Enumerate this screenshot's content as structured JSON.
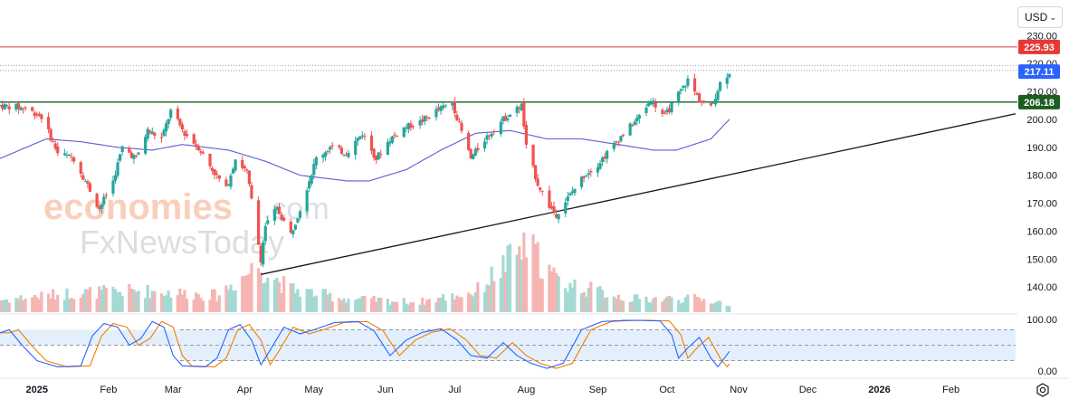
{
  "currency": {
    "selected": "USD"
  },
  "icons": {
    "currency_dropdown": "chevron-down-icon",
    "settings": "gear-icon"
  },
  "chart_data": [
    {
      "type": "candlestick",
      "title": "",
      "ylim": [
        131,
        233
      ],
      "y_ticks": [
        "140.00",
        "150.00",
        "160.00",
        "170.00",
        "180.00",
        "190.00",
        "200.00",
        "210.00",
        "220.00",
        "230.00"
      ],
      "x_ticks": [
        "2025",
        "Feb",
        "Mar",
        "Apr",
        "May",
        "Jun",
        "Jul",
        "Aug",
        "Sep",
        "Oct",
        "Nov",
        "Dec",
        "2026",
        "Feb"
      ],
      "tick_dates": [
        "2025-01-01",
        "2025-02-01",
        "2025-03-01",
        "2025-04-01",
        "2025-05-01",
        "2025-06-01",
        "2025-07-01",
        "2025-08-01",
        "2025-09-01",
        "2025-10-01",
        "2025-11-01",
        "2025-12-01",
        "2026-01-01",
        "2026-02-01"
      ],
      "date_range": [
        "2024-12-16",
        "2026-03-01"
      ],
      "colors": {
        "up": "#26a69a",
        "down": "#ef5350",
        "ma": "#5b5bd6",
        "resistance": "#e53935",
        "support": "#1b5e20",
        "trend": "#131722",
        "current": "#2962ff"
      },
      "price_labels": [
        {
          "value": "225.93",
          "color": "#e53935"
        },
        {
          "value": "217.11",
          "color": "#2962ff"
        },
        {
          "value": "206.18",
          "color": "#1b5e20"
        }
      ],
      "levels": {
        "resistance": 225.93,
        "support": 206.18,
        "dotted": [
          219.3,
          217.5
        ]
      },
      "trendline": [
        [
          "2025-04-08",
          144.5
        ],
        [
          "2026-03-01",
          202.0
        ]
      ],
      "candle_anchors": [
        [
          "2024-12-16",
          205.0
        ],
        [
          "2024-12-27",
          204.0
        ],
        [
          "2025-01-03",
          201.0
        ],
        [
          "2025-01-10",
          188.0
        ],
        [
          "2025-01-17",
          186.0
        ],
        [
          "2025-01-22",
          178.0
        ],
        [
          "2025-01-28",
          168.0
        ],
        [
          "2025-02-03",
          178.0
        ],
        [
          "2025-02-07",
          190.0
        ],
        [
          "2025-02-13",
          186.0
        ],
        [
          "2025-02-18",
          196.0
        ],
        [
          "2025-02-24",
          193.0
        ],
        [
          "2025-02-28",
          203.0
        ],
        [
          "2025-03-06",
          195.0
        ],
        [
          "2025-03-12",
          190.0
        ],
        [
          "2025-03-18",
          182.0
        ],
        [
          "2025-03-24",
          175.0
        ],
        [
          "2025-03-28",
          186.0
        ],
        [
          "2025-04-02",
          181.0
        ],
        [
          "2025-04-04",
          171.0
        ],
        [
          "2025-04-08",
          150.0
        ],
        [
          "2025-04-10",
          162.0
        ],
        [
          "2025-04-15",
          168.0
        ],
        [
          "2025-04-21",
          159.0
        ],
        [
          "2025-04-25",
          168.0
        ],
        [
          "2025-05-02",
          186.0
        ],
        [
          "2025-05-08",
          190.0
        ],
        [
          "2025-05-15",
          188.0
        ],
        [
          "2025-05-22",
          195.0
        ],
        [
          "2025-05-28",
          186.0
        ],
        [
          "2025-06-03",
          193.0
        ],
        [
          "2025-06-09",
          197.0
        ],
        [
          "2025-06-16",
          199.0
        ],
        [
          "2025-06-23",
          203.0
        ],
        [
          "2025-06-30",
          206.0
        ],
        [
          "2025-07-03",
          198.0
        ],
        [
          "2025-07-08",
          186.0
        ],
        [
          "2025-07-14",
          193.0
        ],
        [
          "2025-07-22",
          200.0
        ],
        [
          "2025-07-30",
          205.0
        ],
        [
          "2025-08-01",
          190.0
        ],
        [
          "2025-08-06",
          177.0
        ],
        [
          "2025-08-11",
          169.0
        ],
        [
          "2025-08-14",
          166.0
        ],
        [
          "2025-08-20",
          173.0
        ],
        [
          "2025-08-26",
          180.0
        ],
        [
          "2025-09-01",
          184.0
        ],
        [
          "2025-09-10",
          193.0
        ],
        [
          "2025-09-18",
          200.0
        ],
        [
          "2025-09-24",
          207.0
        ],
        [
          "2025-09-30",
          201.0
        ],
        [
          "2025-10-06",
          209.0
        ],
        [
          "2025-10-10",
          214.0
        ],
        [
          "2025-10-15",
          207.0
        ],
        [
          "2025-10-20",
          204.0
        ],
        [
          "2025-10-24",
          213.0
        ],
        [
          "2025-10-28",
          217.0
        ]
      ],
      "ma_anchors": [
        [
          "2024-12-16",
          186.0
        ],
        [
          "2025-01-05",
          193.0
        ],
        [
          "2025-01-20",
          192.0
        ],
        [
          "2025-02-05",
          190.0
        ],
        [
          "2025-02-20",
          189.0
        ],
        [
          "2025-03-05",
          191.0
        ],
        [
          "2025-03-25",
          189.0
        ],
        [
          "2025-04-10",
          185.0
        ],
        [
          "2025-04-25",
          180.0
        ],
        [
          "2025-05-15",
          178.0
        ],
        [
          "2025-05-25",
          178.0
        ],
        [
          "2025-06-10",
          182.0
        ],
        [
          "2025-06-25",
          189.0
        ],
        [
          "2025-07-10",
          195.0
        ],
        [
          "2025-07-25",
          196.0
        ],
        [
          "2025-08-10",
          193.0
        ],
        [
          "2025-08-25",
          193.0
        ],
        [
          "2025-09-10",
          191.0
        ],
        [
          "2025-09-25",
          189.0
        ],
        [
          "2025-10-05",
          189.0
        ],
        [
          "2025-10-20",
          193.0
        ],
        [
          "2025-10-28",
          200.0
        ]
      ]
    },
    {
      "type": "bar",
      "name": "volume",
      "source_curve": [
        [
          "2024-12-16",
          0.18
        ],
        [
          "2025-01-15",
          0.28
        ],
        [
          "2025-02-15",
          0.32
        ],
        [
          "2025-03-20",
          0.25
        ],
        [
          "2025-04-07",
          0.7
        ],
        [
          "2025-04-20",
          0.35
        ],
        [
          "2025-05-15",
          0.2
        ],
        [
          "2025-06-15",
          0.15
        ],
        [
          "2025-07-10",
          0.3
        ],
        [
          "2025-08-01",
          1.0
        ],
        [
          "2025-08-15",
          0.45
        ],
        [
          "2025-09-15",
          0.2
        ],
        [
          "2025-10-15",
          0.2
        ],
        [
          "2025-10-28",
          0.12
        ]
      ]
    },
    {
      "type": "line",
      "name": "stochastic",
      "ylim": [
        0,
        100
      ],
      "y_ticks": [
        "100.00",
        "0.00"
      ],
      "bands": [
        20,
        50,
        80
      ],
      "k_anchors": [
        [
          "2024-12-16",
          74
        ],
        [
          "2024-12-20",
          80
        ],
        [
          "2024-12-26",
          48
        ],
        [
          "2025-01-01",
          20
        ],
        [
          "2025-01-10",
          8
        ],
        [
          "2025-01-20",
          10
        ],
        [
          "2025-01-25",
          68
        ],
        [
          "2025-01-30",
          92
        ],
        [
          "2025-02-05",
          85
        ],
        [
          "2025-02-10",
          50
        ],
        [
          "2025-02-15",
          63
        ],
        [
          "2025-02-20",
          96
        ],
        [
          "2025-02-25",
          85
        ],
        [
          "2025-03-01",
          30
        ],
        [
          "2025-03-05",
          10
        ],
        [
          "2025-03-15",
          8
        ],
        [
          "2025-03-20",
          25
        ],
        [
          "2025-03-25",
          80
        ],
        [
          "2025-03-30",
          90
        ],
        [
          "2025-04-04",
          60
        ],
        [
          "2025-04-08",
          12
        ],
        [
          "2025-04-12",
          40
        ],
        [
          "2025-04-18",
          85
        ],
        [
          "2025-04-25",
          72
        ],
        [
          "2025-05-01",
          80
        ],
        [
          "2025-05-10",
          94
        ],
        [
          "2025-05-20",
          96
        ],
        [
          "2025-05-27",
          78
        ],
        [
          "2025-06-03",
          30
        ],
        [
          "2025-06-10",
          60
        ],
        [
          "2025-06-17",
          75
        ],
        [
          "2025-06-25",
          82
        ],
        [
          "2025-07-02",
          60
        ],
        [
          "2025-07-08",
          30
        ],
        [
          "2025-07-15",
          25
        ],
        [
          "2025-07-22",
          55
        ],
        [
          "2025-07-28",
          30
        ],
        [
          "2025-08-03",
          15
        ],
        [
          "2025-08-10",
          5
        ],
        [
          "2025-08-17",
          15
        ],
        [
          "2025-08-25",
          80
        ],
        [
          "2025-09-03",
          96
        ],
        [
          "2025-09-12",
          98
        ],
        [
          "2025-09-20",
          98
        ],
        [
          "2025-09-28",
          97
        ],
        [
          "2025-10-03",
          70
        ],
        [
          "2025-10-06",
          25
        ],
        [
          "2025-10-10",
          45
        ],
        [
          "2025-10-15",
          65
        ],
        [
          "2025-10-20",
          25
        ],
        [
          "2025-10-23",
          8
        ],
        [
          "2025-10-28",
          38
        ]
      ],
      "d_lag_days": 4
    }
  ]
}
